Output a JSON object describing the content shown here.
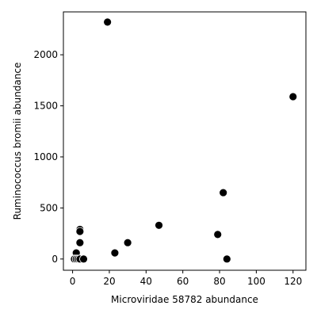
{
  "chart_data": {
    "type": "scatter",
    "title": "",
    "xlabel": "Microviridae 58782 abundance",
    "ylabel": "Ruminococcus bromii abundance",
    "xlim": [
      -5,
      127
    ],
    "ylim": [
      -110,
      2420
    ],
    "x_ticks": [
      0,
      20,
      40,
      60,
      80,
      100,
      120
    ],
    "x_tick_labels": [
      "0",
      "20",
      "40",
      "60",
      "80",
      "100",
      "120"
    ],
    "y_ticks": [
      0,
      500,
      1000,
      1500,
      2000
    ],
    "y_tick_labels": [
      "0",
      "500",
      "1000",
      "1500",
      "2000"
    ],
    "grid": false,
    "legend": false,
    "marker_color": "#000000",
    "marker_edge_color": "#ffffff",
    "series": [
      {
        "points": [
          {
            "x": 19,
            "y": 2320
          },
          {
            "x": 120,
            "y": 1590
          },
          {
            "x": 82,
            "y": 650
          },
          {
            "x": 47,
            "y": 330
          },
          {
            "x": 4,
            "y": 290
          },
          {
            "x": 4,
            "y": 270
          },
          {
            "x": 79,
            "y": 240
          },
          {
            "x": 4,
            "y": 160
          },
          {
            "x": 30,
            "y": 160
          },
          {
            "x": 2,
            "y": 60
          },
          {
            "x": 23,
            "y": 60
          },
          {
            "x": 1,
            "y": 0
          },
          {
            "x": 2,
            "y": 0
          },
          {
            "x": 3,
            "y": 0
          },
          {
            "x": 4,
            "y": 0
          },
          {
            "x": 4,
            "y": 0
          },
          {
            "x": 6,
            "y": 0
          },
          {
            "x": 84,
            "y": 0
          }
        ]
      }
    ]
  }
}
